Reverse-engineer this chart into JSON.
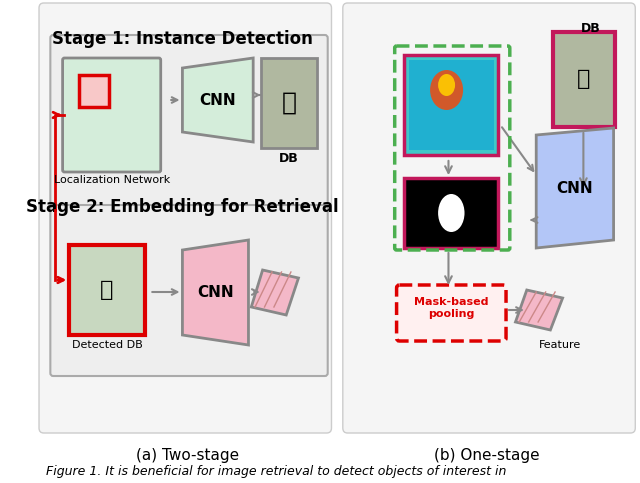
{
  "title": "",
  "caption_a": "(a) Two-stage",
  "caption_b": "(b) One-stage",
  "figure_caption": "Figure 1. It is beneficial for image retrieval to detect objects of interest in",
  "stage1_title": "Stage 1: Instance Detection",
  "stage2_title": "Stage 2: Embedding for Retrieval",
  "bg_color": "#f0f0f0",
  "panel_bg": "#f5f5f5",
  "green_box_color": "#c8e6c9",
  "green_border": "#888888",
  "pink_border": "#c2185b",
  "blue_box": "#b3c6f7",
  "red_color": "#dd0000",
  "green_dashed": "#4caf50",
  "arrow_color": "#999999",
  "text_color": "#000000",
  "label_fontsize": 10,
  "title_fontsize": 12,
  "caption_fontsize": 11
}
